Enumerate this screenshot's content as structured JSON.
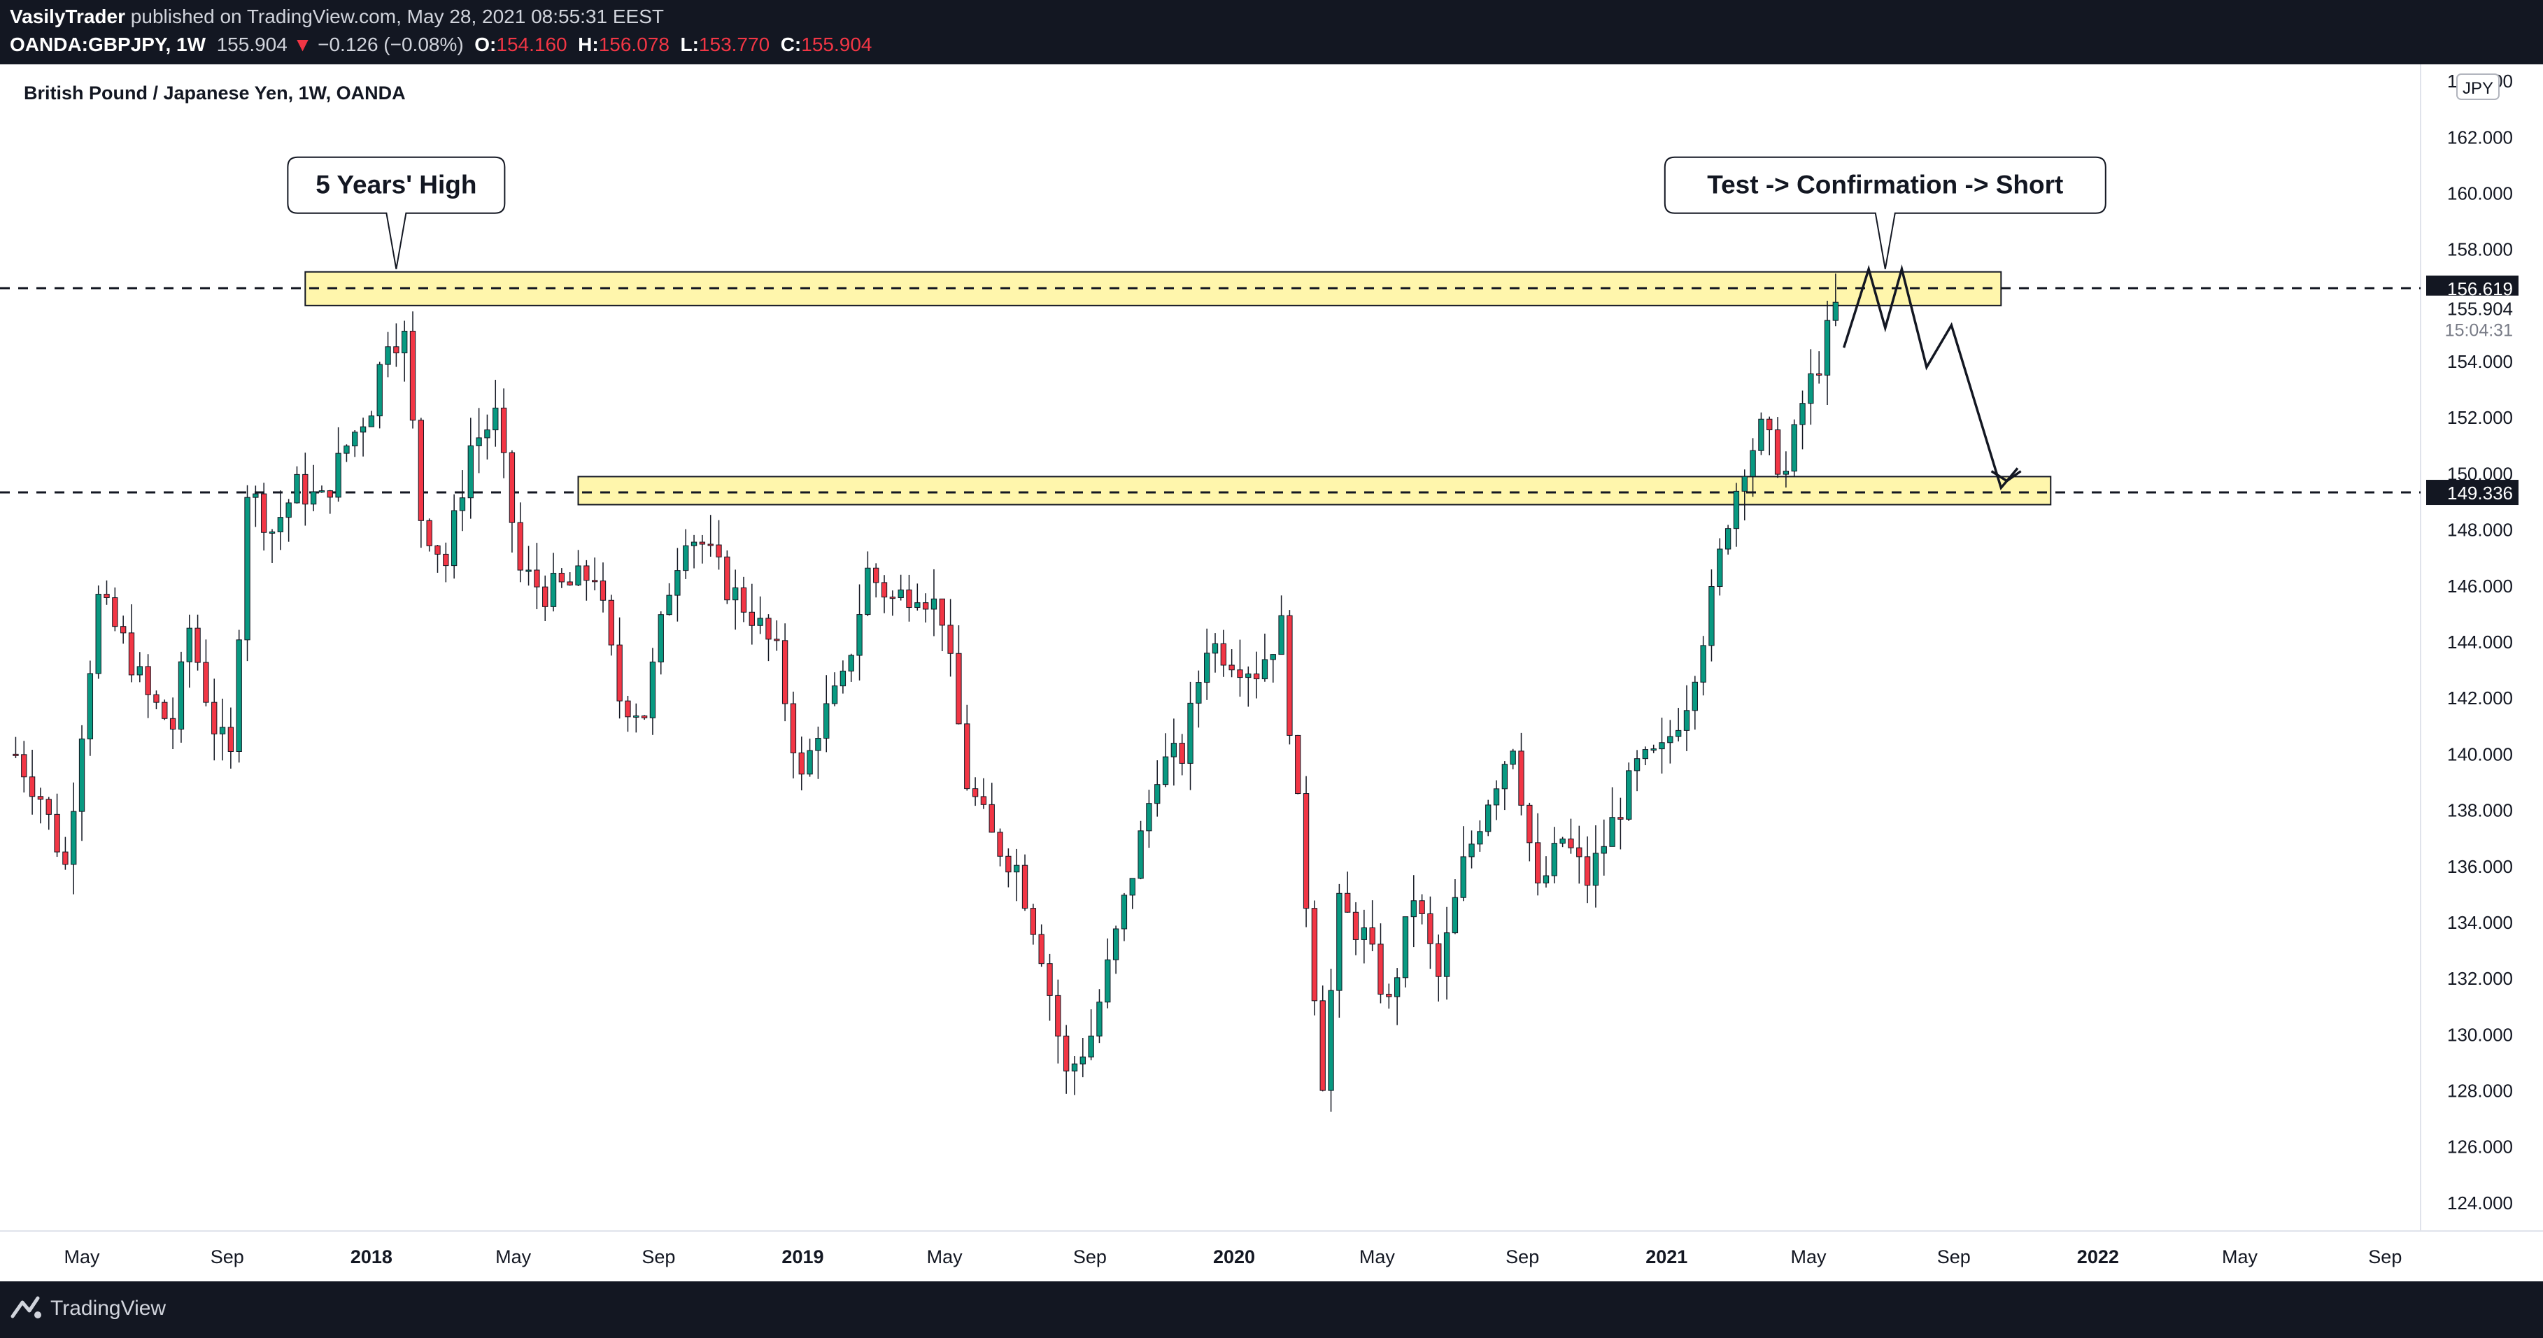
{
  "header": {
    "author": "VasilyTrader",
    "published_text": "published on TradingView.com, May 28, 2021 08:55:31 EEST",
    "symbol": "OANDA:GBPJPY, 1W",
    "last": "155.904",
    "change_arrow": "▼",
    "change": "−0.126 (−0.08%)",
    "o_label": "O:",
    "o": "154.160",
    "h_label": "H:",
    "h": "156.078",
    "l_label": "L:",
    "l": "153.770",
    "c_label": "C:",
    "c": "155.904"
  },
  "footer": {
    "brand": "TradingView"
  },
  "colors": {
    "up": "#26a69a",
    "up_fill": "#089981",
    "down": "#f23645",
    "zone": "#fff59d",
    "bg_dark": "#131722"
  },
  "chart_data": {
    "type": "candlestick",
    "title": "British Pound / Japanese Yen, 1W, OANDA",
    "currency_label": "JPY",
    "y_ticks": [
      "124.000",
      "126.000",
      "128.000",
      "130.000",
      "132.000",
      "134.000",
      "136.000",
      "138.000",
      "140.000",
      "142.000",
      "144.000",
      "146.000",
      "148.000",
      "150.000",
      "152.000",
      "154.000",
      "156.000",
      "158.000",
      "160.000",
      "162.000",
      "164.000"
    ],
    "ylim": [
      123.0,
      164.6
    ],
    "x_ticks": [
      "May",
      "Sep",
      "2018",
      "May",
      "Sep",
      "2019",
      "May",
      "Sep",
      "2020",
      "May",
      "Sep",
      "2021",
      "May",
      "Sep",
      "2022",
      "May",
      "Sep"
    ],
    "x_tick_dates": [
      "2017-05-01",
      "2017-09-01",
      "2018-01-01",
      "2018-05-01",
      "2018-09-01",
      "2019-01-01",
      "2019-05-01",
      "2019-09-01",
      "2020-01-01",
      "2020-05-01",
      "2020-09-01",
      "2021-01-01",
      "2021-05-01",
      "2021-09-01",
      "2022-01-01",
      "2022-05-01",
      "2022-09-01"
    ],
    "xlim": [
      "2017-03-01",
      "2022-10-01"
    ],
    "weekly_close_path": [
      [
        "2017-03-06",
        140.0
      ],
      [
        "2017-03-27",
        138.5
      ],
      [
        "2017-04-17",
        136.0
      ],
      [
        "2017-05-01",
        141.0
      ],
      [
        "2017-05-15",
        145.5
      ],
      [
        "2017-06-05",
        144.0
      ],
      [
        "2017-06-26",
        142.0
      ],
      [
        "2017-07-17",
        141.0
      ],
      [
        "2017-07-31",
        144.5
      ],
      [
        "2017-08-21",
        141.0
      ],
      [
        "2017-09-04",
        139.8
      ],
      [
        "2017-09-18",
        149.5
      ],
      [
        "2017-10-09",
        148.0
      ],
      [
        "2017-10-30",
        149.5
      ],
      [
        "2017-11-20",
        149.0
      ],
      [
        "2017-12-11",
        151.0
      ],
      [
        "2018-01-01",
        152.5
      ],
      [
        "2018-01-15",
        155.0
      ],
      [
        "2018-01-29",
        154.8
      ],
      [
        "2018-02-12",
        148.5
      ],
      [
        "2018-03-05",
        146.8
      ],
      [
        "2018-03-26",
        151.0
      ],
      [
        "2018-04-16",
        152.0
      ],
      [
        "2018-05-07",
        146.5
      ],
      [
        "2018-05-28",
        145.8
      ],
      [
        "2018-06-18",
        146.0
      ],
      [
        "2018-07-09",
        146.5
      ],
      [
        "2018-07-30",
        142.0
      ],
      [
        "2018-08-20",
        141.5
      ],
      [
        "2018-09-10",
        146.0
      ],
      [
        "2018-09-24",
        148.0
      ],
      [
        "2018-10-08",
        147.5
      ],
      [
        "2018-10-29",
        146.0
      ],
      [
        "2018-11-19",
        145.0
      ],
      [
        "2018-12-10",
        143.5
      ],
      [
        "2018-12-31",
        139.0
      ],
      [
        "2019-01-14",
        141.0
      ],
      [
        "2019-02-04",
        142.5
      ],
      [
        "2019-02-25",
        146.5
      ],
      [
        "2019-03-18",
        145.5
      ],
      [
        "2019-04-08",
        146.0
      ],
      [
        "2019-04-29",
        145.0
      ],
      [
        "2019-05-20",
        139.0
      ],
      [
        "2019-06-10",
        137.0
      ],
      [
        "2019-07-01",
        136.0
      ],
      [
        "2019-07-22",
        133.0
      ],
      [
        "2019-08-12",
        128.5
      ],
      [
        "2019-09-02",
        130.0
      ],
      [
        "2019-09-23",
        133.5
      ],
      [
        "2019-10-14",
        137.0
      ],
      [
        "2019-10-28",
        139.5
      ],
      [
        "2019-11-18",
        140.0
      ],
      [
        "2019-12-09",
        144.0
      ],
      [
        "2019-12-30",
        143.5
      ],
      [
        "2020-01-20",
        143.0
      ],
      [
        "2020-02-10",
        144.5
      ],
      [
        "2020-02-24",
        138.0
      ],
      [
        "2020-03-16",
        128.5
      ],
      [
        "2020-03-30",
        134.5
      ],
      [
        "2020-04-20",
        133.5
      ],
      [
        "2020-05-11",
        131.0
      ],
      [
        "2020-06-01",
        135.0
      ],
      [
        "2020-06-22",
        132.0
      ],
      [
        "2020-07-13",
        136.0
      ],
      [
        "2020-08-03",
        138.5
      ],
      [
        "2020-08-24",
        140.5
      ],
      [
        "2020-09-14",
        135.0
      ],
      [
        "2020-10-05",
        137.0
      ],
      [
        "2020-10-26",
        135.5
      ],
      [
        "2020-11-16",
        137.5
      ],
      [
        "2020-12-07",
        139.5
      ],
      [
        "2020-12-28",
        140.0
      ],
      [
        "2021-01-18",
        142.0
      ],
      [
        "2021-02-08",
        145.5
      ],
      [
        "2021-02-22",
        148.5
      ],
      [
        "2021-03-08",
        150.5
      ],
      [
        "2021-03-22",
        151.5
      ],
      [
        "2021-04-12",
        150.0
      ],
      [
        "2021-04-26",
        152.5
      ],
      [
        "2021-05-10",
        154.0
      ],
      [
        "2021-05-24",
        155.904
      ]
    ],
    "zones": [
      {
        "from": "2017-11-06",
        "to": "2021-10-11",
        "low": 156.0,
        "high": 157.2
      },
      {
        "from": "2018-06-25",
        "to": "2021-11-22",
        "low": 148.9,
        "high": 149.9
      }
    ],
    "horizontal_lines": [
      156.619,
      149.336
    ],
    "price_labels": [
      {
        "value": 156.619,
        "text": "156.619",
        "style": "dark"
      },
      {
        "value": 149.336,
        "text": "149.336",
        "style": "dark"
      },
      {
        "value": 155.904,
        "text": "155.904",
        "style": "plain"
      }
    ],
    "countdown": "15:04:31",
    "annotations": [
      {
        "text": "5 Years' High",
        "date": "2018-01-22",
        "value": 157.3
      },
      {
        "text": "Test -> Confirmation -> Short",
        "date": "2021-07-05",
        "value": 157.3
      }
    ],
    "projection_path": [
      [
        "2021-05-31",
        154.5
      ],
      [
        "2021-06-21",
        157.3
      ],
      [
        "2021-07-05",
        155.2
      ],
      [
        "2021-07-19",
        157.3
      ],
      [
        "2021-08-09",
        153.8
      ],
      [
        "2021-08-30",
        155.3
      ],
      [
        "2021-10-11",
        149.5
      ],
      [
        "2021-10-25",
        150.2
      ]
    ]
  }
}
